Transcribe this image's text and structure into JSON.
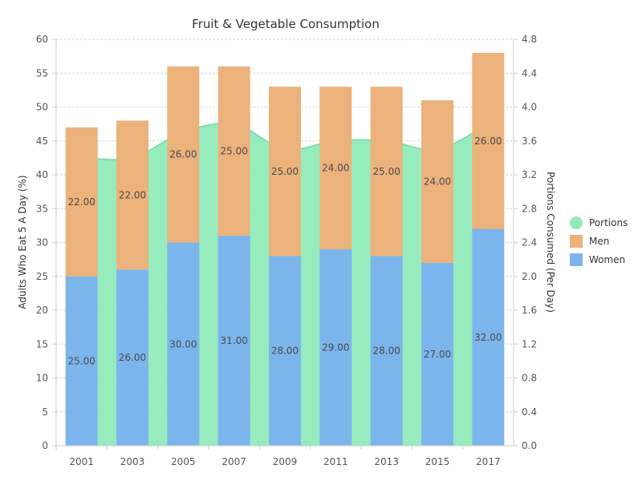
{
  "chart_data": {
    "type": "bar",
    "title": "Fruit & Vegetable Consumption",
    "categories": [
      "2001",
      "2003",
      "2005",
      "2007",
      "2009",
      "2011",
      "2013",
      "2015",
      "2017"
    ],
    "series": [
      {
        "name": "Women",
        "kind": "bar",
        "axis": "left",
        "color": "#7cb5ec",
        "values": [
          25,
          26,
          30,
          31,
          28,
          29,
          28,
          27,
          32
        ],
        "labels": [
          "25.00",
          "26.00",
          "30.00",
          "31.00",
          "28.00",
          "29.00",
          "28.00",
          "27.00",
          "32.00"
        ]
      },
      {
        "name": "Men",
        "kind": "bar",
        "axis": "left",
        "color": "#ecb27c",
        "values": [
          22,
          22,
          26,
          25,
          25,
          24,
          25,
          24,
          26
        ],
        "labels": [
          "22.00",
          "22.00",
          "26.00",
          "25.00",
          "25.00",
          "24.00",
          "25.00",
          "24.00",
          "26.00"
        ]
      },
      {
        "name": "Portions",
        "kind": "area",
        "axis": "right",
        "color": "#90ebb9",
        "values": [
          3.4,
          3.4,
          3.7,
          3.8,
          3.5,
          3.6,
          3.6,
          3.5,
          3.8
        ]
      }
    ],
    "stacked": true,
    "ylabel": "Adults Who Eat 5 A Day (%)",
    "ylim": [
      0,
      60
    ],
    "yticks": [
      "0",
      "5",
      "10",
      "15",
      "20",
      "25",
      "30",
      "35",
      "40",
      "45",
      "50",
      "55",
      "60"
    ],
    "y2label": "Portions Consumed (Per Day)",
    "y2lim": [
      0,
      4.8
    ],
    "y2ticks": [
      "0.0",
      "0.4",
      "0.8",
      "1.2",
      "1.6",
      "2.0",
      "2.4",
      "2.8",
      "3.2",
      "3.6",
      "4.0",
      "4.4",
      "4.8"
    ],
    "legend": {
      "position": "right",
      "items": [
        {
          "name": "Portions",
          "color": "#90ebb9",
          "symbol": "circle"
        },
        {
          "name": "Men",
          "color": "#ecb27c",
          "symbol": "square"
        },
        {
          "name": "Women",
          "color": "#7cb5ec",
          "symbol": "square"
        }
      ]
    },
    "grid": true
  }
}
